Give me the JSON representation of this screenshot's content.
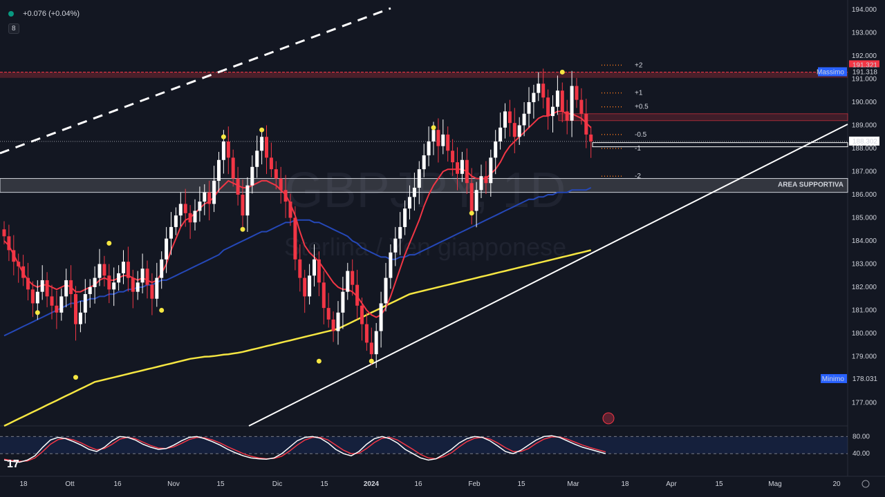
{
  "header": {
    "change": "+0.076 (+0.04%)",
    "badge": "8"
  },
  "watermark": {
    "symbol": "GBPJPY, 1D",
    "name": "Sterlina / Yen giapponese"
  },
  "labels": {
    "area_supportiva": "AREA SUPPORTIVA",
    "massimo_text": "Massimo",
    "massimo_value": "191.318",
    "minimo_text": "Minimo",
    "minimo_value": "178.031",
    "last_price_red": "191.321",
    "last_price_white": "188.302"
  },
  "fib_levels": [
    "+2",
    "+1",
    "+0.5",
    "-0.5",
    "-1",
    "-2"
  ],
  "colors": {
    "background": "#131722",
    "up": "#ffffff",
    "down": "#f23645",
    "ema_fast": "#f23645",
    "sma_mid": "#2548b8",
    "sma_slow": "#f5e642",
    "pivot": "#f5e642",
    "fib": "#ff7a1a",
    "resistance": "#f23645"
  },
  "chart_data": {
    "type": "candlestick",
    "symbol": "GBPJPY",
    "timeframe": "1D",
    "ylim": [
      176,
      194
    ],
    "price_ticks": [
      "177.000",
      "178.000",
      "179.000",
      "180.000",
      "181.000",
      "182.000",
      "183.000",
      "184.000",
      "185.000",
      "186.000",
      "187.000",
      "188.000",
      "189.000",
      "190.000",
      "191.000",
      "192.000",
      "193.000",
      "194.000"
    ],
    "time_ticks": [
      "18",
      "Ott",
      "16",
      "Nov",
      "15",
      "Dic",
      "15",
      "2024",
      "16",
      "Feb",
      "15",
      "Mar",
      "18",
      "Apr",
      "15",
      "Mag",
      "20"
    ],
    "closes": [
      184.2,
      183.6,
      183.1,
      182.9,
      182.4,
      181.9,
      181.3,
      181.8,
      182.3,
      181.6,
      181.2,
      180.9,
      181.6,
      182.3,
      181.7,
      180.4,
      180.9,
      181.7,
      182.0,
      182.4,
      183.0,
      182.5,
      181.9,
      182.2,
      182.6,
      183.1,
      182.4,
      181.8,
      182.2,
      182.8,
      182.1,
      181.5,
      182.4,
      183.2,
      184.1,
      184.6,
      185.1,
      185.6,
      185.2,
      184.8,
      185.3,
      185.7,
      186.1,
      185.6,
      186.6,
      187.5,
      188.3,
      187.6,
      186.7,
      186.0,
      185.1,
      186.4,
      187.2,
      187.9,
      188.5,
      187.6,
      187.1,
      186.7,
      186.2,
      185.7,
      185.0,
      183.2,
      182.4,
      181.6,
      182.5,
      183.2,
      182.2,
      181.1,
      180.6,
      180.1,
      180.9,
      181.8,
      182.7,
      182.1,
      181.2,
      180.4,
      179.6,
      179.1,
      180.1,
      181.3,
      182.4,
      183.5,
      184.1,
      184.6,
      185.4,
      185.9,
      186.3,
      187.1,
      187.7,
      188.3,
      188.8,
      188.1,
      188.6,
      187.9,
      187.4,
      186.9,
      187.5,
      186.5,
      185.3,
      186.2,
      186.8,
      186.5,
      187.6,
      188.3,
      188.9,
      189.6,
      189.1,
      188.5,
      189.0,
      189.5,
      190.0,
      190.4,
      190.8,
      190.2,
      189.4,
      189.8,
      190.5,
      189.6,
      189.2,
      190.7,
      190.1,
      189.5,
      188.6,
      188.3
    ],
    "open": 184.5,
    "indicators": {
      "ema_fast": [
        184.0,
        183.8,
        183.4,
        183.0,
        182.6,
        182.3,
        182.1,
        182.0,
        182.1,
        182.1,
        182.0,
        181.9,
        182.0,
        182.1,
        182.0,
        181.8,
        181.8,
        181.9,
        182.0,
        182.1,
        182.3,
        182.4,
        182.3,
        182.3,
        182.4,
        182.5,
        182.5,
        182.4,
        182.3,
        182.4,
        182.3,
        182.2,
        182.3,
        182.6,
        183.0,
        183.6,
        184.1,
        184.6,
        184.9,
        185.0,
        185.2,
        185.4,
        185.6,
        185.7,
        185.9,
        186.2,
        186.4,
        186.6,
        186.5,
        186.4,
        186.3,
        186.3,
        186.4,
        186.5,
        186.6,
        186.6,
        186.5,
        186.4,
        186.2,
        186.0,
        185.6,
        185.1,
        184.4,
        183.8,
        183.5,
        183.3,
        183.1,
        182.8,
        182.5,
        182.2,
        182.0,
        181.9,
        181.9,
        181.8,
        181.6,
        181.3,
        181.0,
        180.8,
        180.7,
        180.8,
        181.1,
        181.6,
        182.2,
        182.8,
        183.4,
        183.9,
        184.4,
        184.9,
        185.5,
        186.0,
        186.4,
        186.7,
        187.0,
        187.1,
        187.1,
        187.1,
        187.1,
        187.0,
        186.8,
        186.7,
        186.7,
        186.7,
        186.9,
        187.1,
        187.4,
        187.8,
        188.1,
        188.3,
        188.5,
        188.7,
        188.9,
        189.1,
        189.3,
        189.4,
        189.4,
        189.5,
        189.6,
        189.6,
        189.5,
        189.5,
        189.4,
        189.3,
        189.1,
        188.9
      ],
      "sma_mid": [
        179.9,
        180.0,
        180.1,
        180.2,
        180.3,
        180.4,
        180.5,
        180.6,
        180.7,
        180.8,
        180.9,
        181.0,
        181.1,
        181.2,
        181.3,
        181.3,
        181.4,
        181.4,
        181.5,
        181.5,
        181.6,
        181.6,
        181.7,
        181.7,
        181.8,
        181.8,
        181.9,
        181.9,
        182.0,
        182.0,
        182.1,
        182.1,
        182.2,
        182.3,
        182.3,
        182.4,
        182.5,
        182.6,
        182.7,
        182.8,
        182.9,
        183.0,
        183.1,
        183.2,
        183.3,
        183.4,
        183.6,
        183.7,
        183.8,
        183.9,
        184.0,
        184.1,
        184.2,
        184.3,
        184.4,
        184.4,
        184.5,
        184.6,
        184.7,
        184.8,
        184.8,
        184.9,
        184.9,
        184.9,
        184.9,
        184.8,
        184.8,
        184.7,
        184.6,
        184.5,
        184.4,
        184.3,
        184.2,
        184.0,
        183.9,
        183.7,
        183.6,
        183.5,
        183.4,
        183.3,
        183.3,
        183.2,
        183.2,
        183.3,
        183.3,
        183.4,
        183.4,
        183.5,
        183.6,
        183.7,
        183.8,
        183.9,
        184.0,
        184.1,
        184.2,
        184.3,
        184.4,
        184.5,
        184.6,
        184.7,
        184.8,
        184.9,
        185.0,
        185.1,
        185.2,
        185.3,
        185.4,
        185.5,
        185.6,
        185.7,
        185.8,
        185.8,
        185.9,
        185.9,
        186.0,
        186.0,
        186.1,
        186.1,
        186.1,
        186.2,
        186.2,
        186.2,
        186.2,
        186.3
      ],
      "sma_slow": [
        176.0,
        176.1,
        176.2,
        176.3,
        176.4,
        176.5,
        176.6,
        176.7,
        176.8,
        176.9,
        177.0,
        177.1,
        177.2,
        177.3,
        177.4,
        177.5,
        177.6,
        177.7,
        177.8,
        177.9,
        177.95,
        178.0,
        178.05,
        178.1,
        178.15,
        178.2,
        178.25,
        178.3,
        178.35,
        178.4,
        178.45,
        178.5,
        178.55,
        178.6,
        178.65,
        178.7,
        178.75,
        178.8,
        178.85,
        178.9,
        178.93,
        178.96,
        178.99,
        179.0,
        179.02,
        179.05,
        179.08,
        179.1,
        179.13,
        179.16,
        179.2,
        179.25,
        179.3,
        179.35,
        179.4,
        179.45,
        179.5,
        179.55,
        179.6,
        179.65,
        179.7,
        179.75,
        179.8,
        179.85,
        179.9,
        179.95,
        180.0,
        180.05,
        180.1,
        180.15,
        180.2,
        180.3,
        180.4,
        180.5,
        180.6,
        180.7,
        180.8,
        180.9,
        181.0,
        181.1,
        181.2,
        181.3,
        181.4,
        181.5,
        181.6,
        181.7,
        181.75,
        181.8,
        181.85,
        181.9,
        181.95,
        182.0,
        182.05,
        182.1,
        182.15,
        182.2,
        182.25,
        182.3,
        182.35,
        182.4,
        182.45,
        182.5,
        182.55,
        182.6,
        182.65,
        182.7,
        182.75,
        182.8,
        182.85,
        182.9,
        182.95,
        183.0,
        183.05,
        183.1,
        183.15,
        183.2,
        183.25,
        183.3,
        183.35,
        183.4,
        183.45,
        183.5,
        183.55,
        183.6
      ]
    },
    "pivots": [
      {
        "i": 7,
        "price": 180.9
      },
      {
        "i": 15,
        "price": 178.1
      },
      {
        "i": 22,
        "price": 183.9
      },
      {
        "i": 33,
        "price": 181.0
      },
      {
        "i": 46,
        "price": 188.5
      },
      {
        "i": 50,
        "price": 184.5
      },
      {
        "i": 54,
        "price": 188.8
      },
      {
        "i": 66,
        "price": 178.8
      },
      {
        "i": 77,
        "price": 178.8
      },
      {
        "i": 90,
        "price": 188.9
      },
      {
        "i": 98,
        "price": 185.2
      },
      {
        "i": 117,
        "price": 191.3
      }
    ],
    "resistance": 191.2,
    "support_zone": [
      186.1,
      186.7
    ],
    "current_price": 188.302,
    "oscillator": {
      "levels": [
        80,
        40
      ],
      "k": [
        25,
        22,
        20,
        25,
        35,
        55,
        72,
        78,
        75,
        68,
        60,
        50,
        45,
        55,
        70,
        80,
        78,
        72,
        62,
        55,
        50,
        52,
        60,
        70,
        78,
        80,
        75,
        68,
        60,
        50,
        42,
        35,
        30,
        28,
        27,
        30,
        40,
        55,
        70,
        78,
        80,
        76,
        65,
        50,
        40,
        35,
        45,
        62,
        75,
        80,
        75,
        65,
        50,
        40,
        30,
        25,
        28,
        38,
        50,
        65,
        75,
        80,
        78,
        70,
        58,
        45,
        40,
        48,
        60,
        72,
        80,
        82,
        78,
        70,
        62,
        55,
        50,
        45,
        40
      ],
      "d": [
        27,
        24,
        22,
        23,
        30,
        45,
        62,
        73,
        76,
        72,
        65,
        56,
        49,
        52,
        62,
        74,
        78,
        75,
        67,
        59,
        53,
        52,
        56,
        64,
        73,
        78,
        77,
        72,
        65,
        56,
        48,
        40,
        34,
        30,
        28,
        29,
        34,
        46,
        60,
        72,
        78,
        78,
        72,
        60,
        48,
        40,
        41,
        52,
        66,
        76,
        78,
        72,
        61,
        50,
        38,
        30,
        28,
        33,
        42,
        56,
        68,
        76,
        78,
        74,
        65,
        54,
        45,
        45,
        52,
        64,
        74,
        79,
        79,
        74,
        67,
        60,
        54,
        49,
        44
      ]
    }
  }
}
